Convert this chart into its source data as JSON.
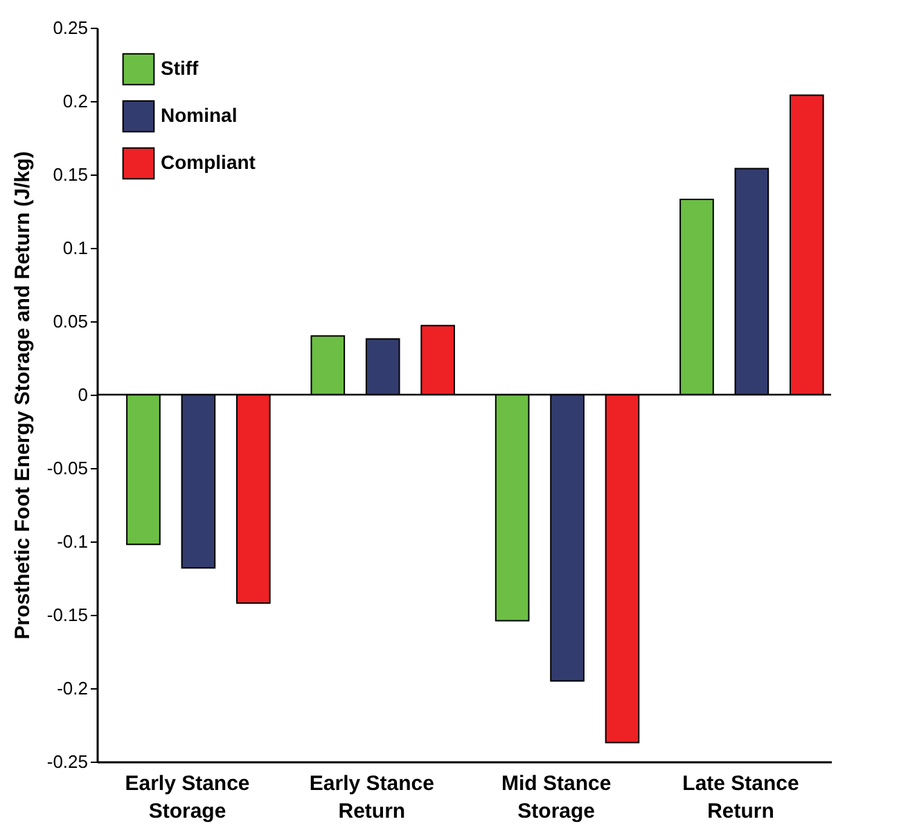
{
  "chart_data": {
    "type": "bar",
    "ylabel": "Prosthetic Foot Energy Storage and Return (J/kg)",
    "categories": [
      "Early Stance Storage",
      "Early Stance Return",
      "Mid Stance Storage",
      "Late Stance Return"
    ],
    "series": [
      {
        "name": "Stiff",
        "color": "#6cbf44",
        "values": [
          -0.102,
          0.04,
          -0.154,
          0.133
        ]
      },
      {
        "name": "Nominal",
        "color": "#333c6e",
        "values": [
          -0.118,
          0.038,
          -0.195,
          0.154
        ]
      },
      {
        "name": "Compliant",
        "color": "#ee2125",
        "values": [
          -0.142,
          0.047,
          -0.237,
          0.204
        ]
      }
    ],
    "ylim": [
      -0.25,
      0.25
    ],
    "yticks": [
      -0.25,
      -0.2,
      -0.15,
      -0.1,
      -0.05,
      0,
      0.05,
      0.1,
      0.15,
      0.2,
      0.25
    ],
    "ref_lines": [
      {
        "axis": "y",
        "value": 0
      }
    ],
    "legend": "top left",
    "grid": false
  }
}
